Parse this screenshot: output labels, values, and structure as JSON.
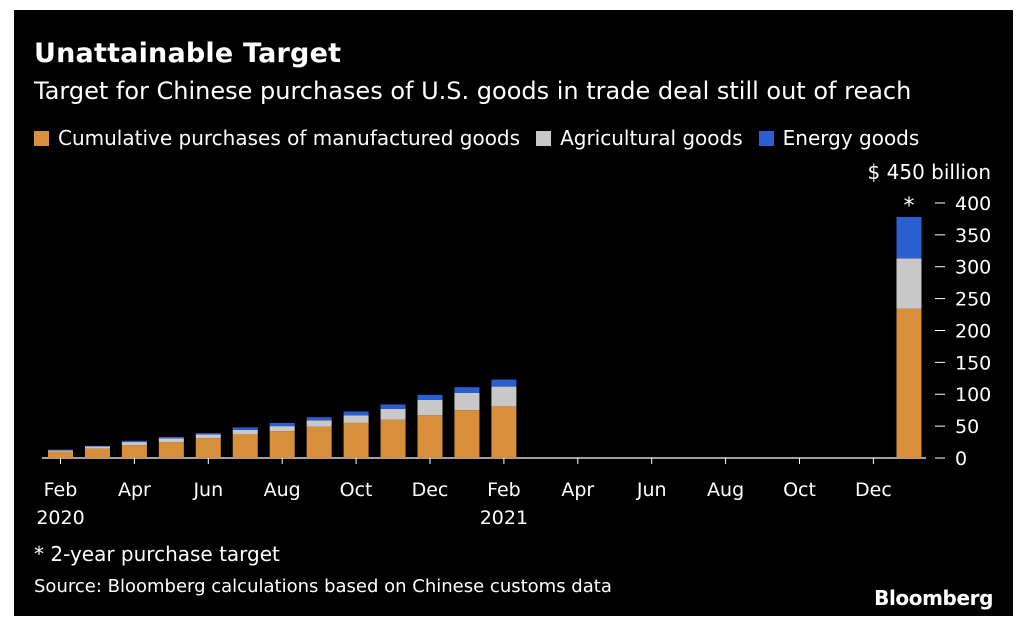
{
  "title": "Unattainable Target",
  "subtitle": "Target for Chinese purchases of U.S. goods in trade deal still out of reach",
  "unit_label": "$ 450 billion",
  "footnote": "* 2-year purchase target",
  "source": "Source: Bloomberg calculations based on Chinese customs data",
  "brand": "Bloomberg",
  "colors": {
    "manufactured": "#d88f3c",
    "agricultural": "#c8c8c8",
    "energy": "#2a5fd0"
  },
  "chart_data": {
    "type": "bar",
    "stacked": true,
    "categories": [
      "Feb 2020",
      "Mar 2020",
      "Apr 2020",
      "May 2020",
      "Jun 2020",
      "Jul 2020",
      "Aug 2020",
      "Sep 2020",
      "Oct 2020",
      "Nov 2020",
      "Dec 2020",
      "Jan 2021",
      "Feb 2021",
      "Mar 2021",
      "Apr 2021",
      "May 2021",
      "Jun 2021",
      "Jul 2021",
      "Aug 2021",
      "Sep 2021",
      "Oct 2021",
      "Nov 2021",
      "Dec 2021",
      "Target"
    ],
    "series": [
      {
        "name": "Cumulative purchases of manufactured goods",
        "values": [
          10,
          15,
          20,
          25,
          31,
          37,
          42,
          49,
          55,
          60,
          67,
          75,
          81,
          null,
          null,
          null,
          null,
          null,
          null,
          null,
          null,
          null,
          null,
          234
        ]
      },
      {
        "name": "Agricultural goods",
        "values": [
          2,
          3,
          5,
          6,
          6,
          7,
          8,
          10,
          12,
          17,
          24,
          27,
          31,
          null,
          null,
          null,
          null,
          null,
          null,
          null,
          null,
          null,
          null,
          79
        ]
      },
      {
        "name": "Energy goods",
        "values": [
          1,
          1,
          2,
          2,
          2,
          4,
          5,
          5,
          6,
          7,
          8,
          9,
          11,
          null,
          null,
          null,
          null,
          null,
          null,
          null,
          null,
          null,
          null,
          65
        ]
      }
    ],
    "x_tick_labels": [
      "Feb",
      "Apr",
      "Jun",
      "Aug",
      "Oct",
      "Dec",
      "Feb",
      "Apr",
      "Jun",
      "Aug",
      "Oct",
      "Dec"
    ],
    "x_year_labels": [
      "2020",
      "2021"
    ],
    "y_ticks": [
      0,
      50,
      100,
      150,
      200,
      250,
      300,
      350,
      400
    ],
    "ylim": [
      0,
      450
    ],
    "target_marker": "*",
    "ylabel": "",
    "xlabel": ""
  }
}
